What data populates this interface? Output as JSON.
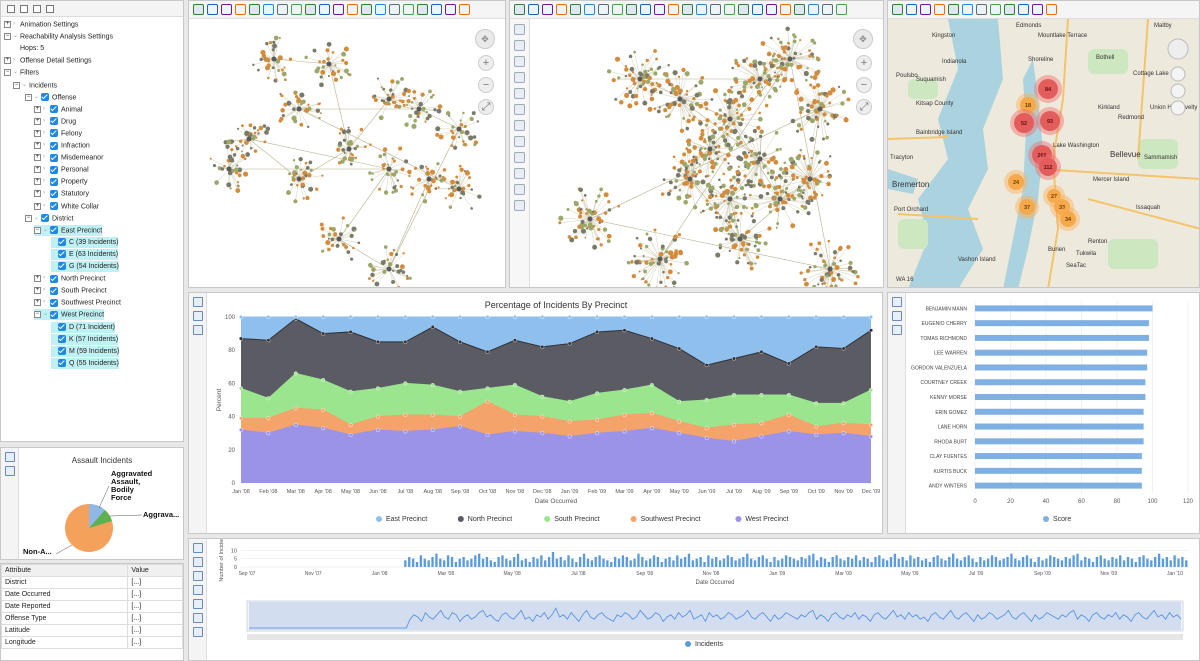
{
  "filters": {
    "rows": [
      {
        "label": "Animation Settings",
        "level": 0,
        "expander": "+"
      },
      {
        "label": "Reachability Analysis Settings",
        "level": 0,
        "expander": "−"
      },
      {
        "label": "Hops: 5",
        "level": 1,
        "expander": ""
      },
      {
        "label": "Offense Detail Settings",
        "level": 0,
        "expander": "+"
      },
      {
        "label": "Filters",
        "level": 0,
        "expander": "−"
      },
      {
        "label": "Incidents",
        "level": 1,
        "expander": "−"
      },
      {
        "label": "Offense",
        "level": 2,
        "expander": "−",
        "checked": true
      },
      {
        "label": "Animal",
        "level": 3,
        "expander": "+",
        "checked": true
      },
      {
        "label": "Drug",
        "level": 3,
        "expander": "+",
        "checked": true
      },
      {
        "label": "Felony",
        "level": 3,
        "expander": "+",
        "checked": true
      },
      {
        "label": "Infraction",
        "level": 3,
        "expander": "+",
        "checked": true
      },
      {
        "label": "Misdemeanor",
        "level": 3,
        "expander": "+",
        "checked": true
      },
      {
        "label": "Personal",
        "level": 3,
        "expander": "+",
        "checked": true
      },
      {
        "label": "Property",
        "level": 3,
        "expander": "+",
        "checked": true
      },
      {
        "label": "Statutory",
        "level": 3,
        "expander": "+",
        "checked": true
      },
      {
        "label": "White Collar",
        "level": 3,
        "expander": "+",
        "checked": true
      },
      {
        "label": "District",
        "level": 2,
        "expander": "−",
        "checked": true
      },
      {
        "label": "East Precinct",
        "level": 3,
        "expander": "−",
        "checked": true,
        "highlight": true
      },
      {
        "label": "C (39 Incidents)",
        "level": 4,
        "expander": "",
        "checked": true,
        "highlight": true
      },
      {
        "label": "E (63 Incidents)",
        "level": 4,
        "expander": "",
        "checked": true,
        "highlight": true
      },
      {
        "label": "G (54 Incidents)",
        "level": 4,
        "expander": "",
        "checked": true,
        "highlight": true
      },
      {
        "label": "North Precinct",
        "level": 3,
        "expander": "+",
        "checked": true
      },
      {
        "label": "South Precinct",
        "level": 3,
        "expander": "+",
        "checked": true
      },
      {
        "label": "Southwest Precinct",
        "level": 3,
        "expander": "+",
        "checked": true
      },
      {
        "label": "West Precinct",
        "level": 3,
        "expander": "−",
        "checked": true,
        "highlight": true
      },
      {
        "label": "D (71 Incident)",
        "level": 4,
        "expander": "",
        "checked": true,
        "highlight": true
      },
      {
        "label": "K (57 Incidents)",
        "level": 4,
        "expander": "",
        "checked": true,
        "highlight": true
      },
      {
        "label": "M (59 Incidents)",
        "level": 4,
        "expander": "",
        "checked": true,
        "highlight": true
      },
      {
        "label": "Q (55 Incidents)",
        "level": 4,
        "expander": "",
        "checked": true,
        "highlight": true
      }
    ]
  },
  "pie_panel": {
    "title": "Assault Incidents",
    "slice_labels": [
      "Aggravated Assault, Bodily Force",
      "Aggrava...",
      "Non-A..."
    ],
    "colors": [
      "#f4a15c",
      "#5fb04f",
      "#8fb8e6",
      "#e8e8e8"
    ]
  },
  "attributes": {
    "headers": [
      "Attribute",
      "Value"
    ],
    "rows": [
      [
        "District",
        "[...]"
      ],
      [
        "Date Occurred",
        "[...]"
      ],
      [
        "Date Reported",
        "[...]"
      ],
      [
        "Offense Type",
        "[...]"
      ],
      [
        "Latitude",
        "[...]"
      ],
      [
        "Longitude",
        "[...]"
      ]
    ]
  },
  "map": {
    "places": [
      "Kingston",
      "Edmonds",
      "Mountlake Terrace",
      "Maltby",
      "Poulsbo",
      "Indianola",
      "Suquamish",
      "Shoreline",
      "Bothell",
      "Cottage Lake",
      "Kirkland",
      "Union Hill Novelty Hill",
      "Redmond",
      "Bainbridge Island",
      "Bremerton",
      "Bellevue",
      "Sammamish",
      "Mercer Island",
      "Port Orchard",
      "Issaquah",
      "Burien",
      "Renton",
      "Vashon Island",
      "SeaTac",
      "Tukwila",
      "WA 16",
      "Tracyton",
      "Lake Washington",
      "Kitsap County"
    ],
    "clusters": [
      {
        "label": "84",
        "kind": "red"
      },
      {
        "label": "18",
        "kind": "orange"
      },
      {
        "label": "52",
        "kind": "red"
      },
      {
        "label": "93",
        "kind": "red"
      },
      {
        "label": "268",
        "kind": "red"
      },
      {
        "label": "112",
        "kind": "red"
      },
      {
        "label": "24",
        "kind": "orange"
      },
      {
        "label": "37",
        "kind": "orange"
      },
      {
        "label": "27",
        "kind": "orange"
      },
      {
        "label": "33",
        "kind": "orange"
      },
      {
        "label": "34",
        "kind": "orange"
      }
    ]
  },
  "chart_data": [
    {
      "type": "area",
      "stacked": true,
      "title": "Percentage of Incidents By Precinct",
      "xlabel": "Date Occurred",
      "ylabel": "Percent",
      "ylim": [
        0,
        100
      ],
      "yticks": [
        0,
        20,
        40,
        60,
        80,
        100
      ],
      "categories": [
        "Jan '08",
        "Feb '08",
        "Mar '08",
        "Apr '08",
        "May '08",
        "Jun '08",
        "Jul '08",
        "Aug '08",
        "Sep '08",
        "Oct '08",
        "Nov '08",
        "Dec '08",
        "Jan '09",
        "Feb '09",
        "Mar '09",
        "Apr '09",
        "May '09",
        "Jun '09",
        "Jul '09",
        "Aug '09",
        "Sep '09",
        "Oct '09",
        "Nov '09",
        "Dec '09"
      ],
      "series": [
        {
          "name": "West Precinct",
          "color": "#9b93e8",
          "values": [
            32,
            30,
            35,
            33,
            29,
            32,
            31,
            32,
            34,
            29,
            31,
            30,
            28,
            30,
            31,
            33,
            30,
            27,
            25,
            28,
            31,
            29,
            30,
            28
          ]
        },
        {
          "name": "Southwest Precinct",
          "color": "#f4a36b",
          "values": [
            7,
            9,
            10,
            11,
            6,
            8,
            10,
            9,
            6,
            20,
            10,
            10,
            9,
            8,
            10,
            9,
            7,
            6,
            10,
            8,
            10,
            5,
            6,
            7
          ]
        },
        {
          "name": "South Precinct",
          "color": "#9be58e",
          "values": [
            18,
            12,
            21,
            18,
            20,
            17,
            19,
            18,
            15,
            8,
            18,
            12,
            12,
            16,
            15,
            17,
            12,
            17,
            18,
            17,
            12,
            14,
            12,
            21
          ]
        },
        {
          "name": "North Precinct",
          "color": "#5b5b64",
          "values": [
            30,
            35,
            33,
            28,
            36,
            28,
            25,
            35,
            30,
            22,
            27,
            30,
            35,
            37,
            36,
            28,
            32,
            21,
            22,
            26,
            19,
            34,
            33,
            36
          ]
        },
        {
          "name": "East Precinct",
          "color": "#8fbfed",
          "values": [
            13,
            14,
            1,
            10,
            9,
            15,
            15,
            6,
            15,
            21,
            14,
            18,
            16,
            9,
            8,
            13,
            19,
            29,
            25,
            21,
            28,
            18,
            19,
            8
          ]
        }
      ]
    },
    {
      "type": "bar",
      "orientation": "horizontal",
      "categories": [
        "BENJAMIN MANN",
        "EUGENIO CHERRY",
        "TOMAS RICHMOND",
        "LEE WARREN",
        "GORDON VALENZUELA",
        "COURTNEY CREEK",
        "KENNY MORSE",
        "ERIN GOMEZ",
        "LANE HORN",
        "RHODA BURT",
        "CLAY FUENTES",
        "KURTIS BUCK",
        "ANDY WINTERS"
      ],
      "series": [
        {
          "name": "Score",
          "color": "#7fb0e3",
          "values": [
            100,
            98,
            98,
            97,
            97,
            96,
            96,
            95,
            95,
            95,
            94,
            94,
            94
          ]
        }
      ],
      "xlim": [
        0,
        120
      ],
      "xticks": [
        0,
        20,
        40,
        60,
        80,
        100,
        120
      ]
    },
    {
      "type": "bar",
      "title": "",
      "ylabel": "Number of Incidents",
      "xlabel": "Date Occurred",
      "yticks": [
        0,
        5,
        10
      ],
      "ylim": [
        0,
        12
      ],
      "tick_labels": [
        "Sep '07",
        "Nov '07",
        "Jan '08",
        "Mar '08",
        "May '08",
        "Jul '08",
        "Sep '08",
        "Nov '08",
        "Jan '09",
        "Mar '09",
        "May '09",
        "Jul '09",
        "Sep '09",
        "Nov '09",
        "Jan '10"
      ],
      "series": [
        {
          "name": "Incidents",
          "color": "#5a9be0",
          "values": [
            0,
            0,
            0,
            0,
            0,
            0,
            0,
            0,
            0,
            0,
            0,
            0,
            0,
            0,
            0,
            0,
            0,
            0,
            0,
            0,
            0,
            0,
            0,
            0,
            0,
            0,
            0,
            0,
            0,
            0,
            0,
            0,
            0,
            0,
            0,
            0,
            0,
            0,
            0,
            0,
            0,
            0,
            4,
            6,
            5,
            3,
            7,
            5,
            4,
            6,
            8,
            5,
            4,
            7,
            6,
            3,
            5,
            6,
            4,
            5,
            7,
            8,
            5,
            6,
            4,
            3,
            6,
            7,
            5,
            4,
            6,
            8,
            4,
            5,
            3,
            6,
            5,
            7,
            4,
            6,
            9,
            5,
            6,
            4,
            7,
            5,
            3,
            6,
            8,
            5,
            4,
            6,
            7,
            5,
            4,
            3,
            6,
            5,
            7,
            6,
            4,
            5,
            8,
            6,
            4,
            5,
            7,
            6,
            3,
            5,
            6,
            4,
            7,
            5,
            6,
            8,
            4,
            5,
            6,
            3,
            7,
            5,
            6,
            4,
            5,
            7,
            6,
            4,
            5,
            6,
            8,
            5,
            4,
            6,
            7,
            5,
            3,
            6,
            4,
            5,
            7,
            6,
            5,
            4,
            6,
            5,
            7,
            8,
            4,
            6,
            5,
            3,
            6,
            7,
            5,
            4,
            6,
            5,
            7,
            4,
            6,
            5,
            3,
            6,
            7,
            5,
            4,
            6,
            8,
            5,
            6,
            4,
            7,
            5,
            6,
            4,
            5,
            3,
            6,
            7,
            5,
            4,
            6,
            8,
            5,
            4,
            6,
            7,
            5,
            3,
            6,
            4,
            5,
            7,
            6,
            4,
            5,
            6,
            8,
            5,
            4,
            6,
            7,
            5,
            3,
            6,
            4,
            5,
            7,
            6,
            5,
            4,
            6,
            5,
            7,
            8,
            4,
            6,
            5,
            3,
            6,
            7,
            5,
            4,
            6,
            5,
            7,
            4,
            6,
            5,
            3,
            6,
            7,
            5,
            4,
            6,
            8,
            5,
            6,
            4,
            7,
            5,
            6,
            4
          ]
        }
      ],
      "legend": "bottom"
    }
  ]
}
